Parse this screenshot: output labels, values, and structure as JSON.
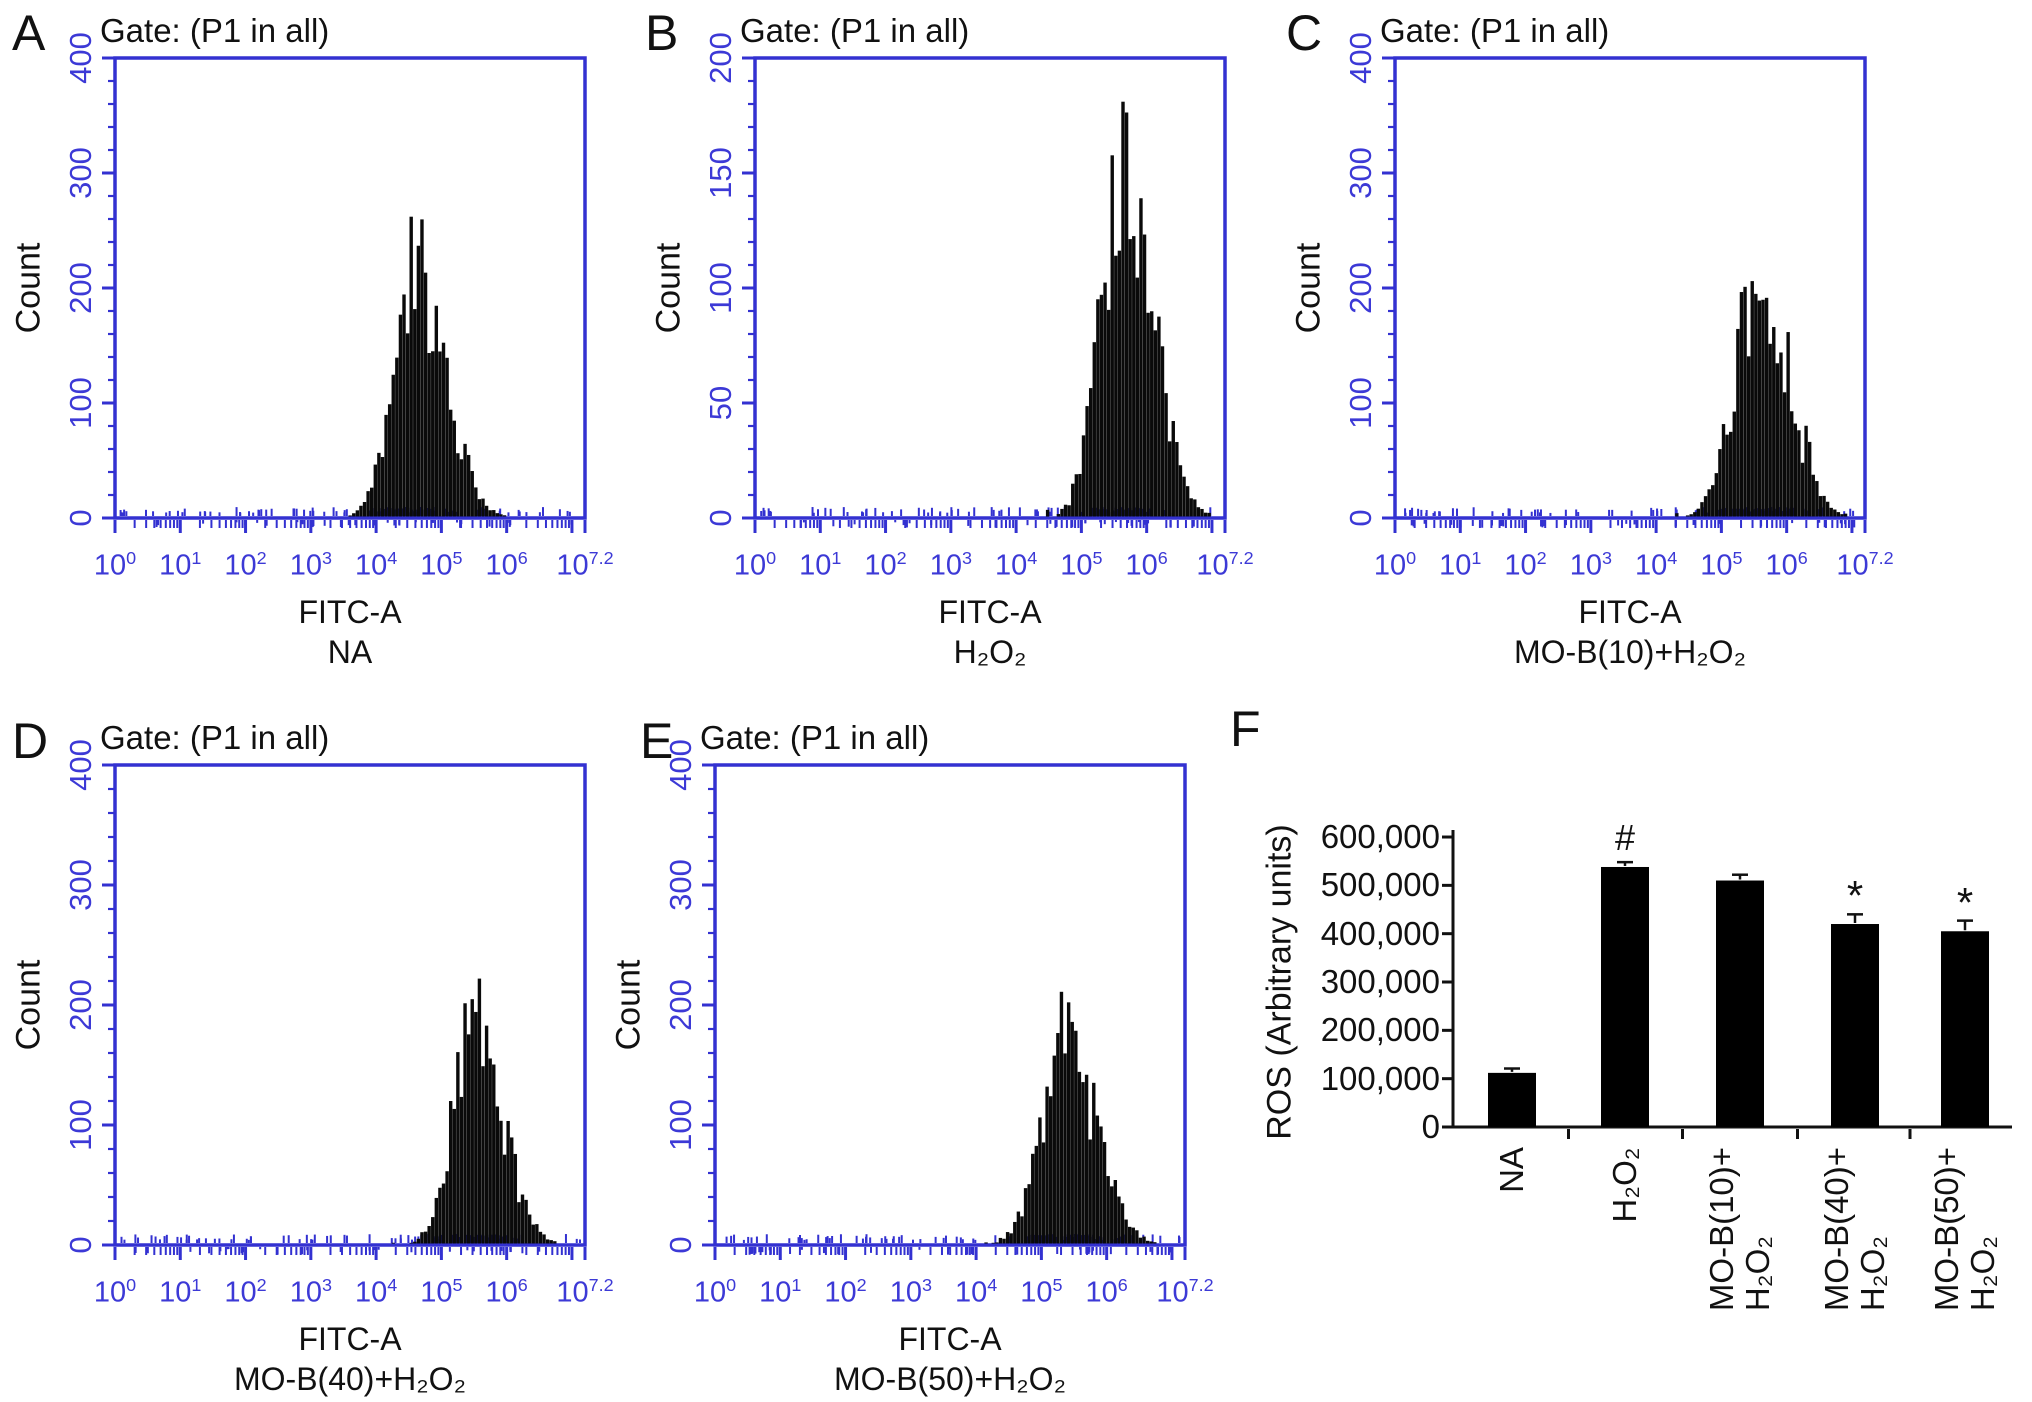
{
  "colors": {
    "axis_blue_line": "#3331d1",
    "axis_blue_text": "#3c39d6",
    "histogram_fill": "#0a0a0a",
    "bar_fill": "#000000",
    "ink": "#111111"
  },
  "x_tick_base": "10",
  "histogram_x_exponents": [
    "0",
    "1",
    "2",
    "3",
    "4",
    "5",
    "6",
    "7.2"
  ],
  "chart_data": [
    {
      "type": "histogram",
      "panel": "A",
      "title": "Gate: (P1 in all)",
      "ylabel": "Count",
      "xlabel": "FITC-A",
      "condition": "NA",
      "x_scale": "log10, decades 0 to 7.2",
      "y_ticks": [
        0,
        100,
        200,
        300,
        400
      ],
      "ylim": [
        0,
        400
      ],
      "peak_log10": 4.62,
      "peak_count": 262,
      "sigma_log10": 0.4,
      "spread_log10": [
        3.6,
        6.1
      ],
      "seed": 11
    },
    {
      "type": "histogram",
      "panel": "B",
      "title": "Gate: (P1 in all)",
      "ylabel": "Count",
      "xlabel": "FITC-A",
      "condition": "H₂O₂",
      "x_scale": "log10, decades 0 to 7.2",
      "y_ticks": [
        0,
        50,
        100,
        150,
        200
      ],
      "ylim": [
        0,
        200
      ],
      "peak_log10": 5.65,
      "peak_count": 181,
      "sigma_log10": 0.4,
      "spread_log10": [
        4.4,
        6.8
      ],
      "seed": 23
    },
    {
      "type": "histogram",
      "panel": "C",
      "title": "Gate: (P1 in all)",
      "ylabel": "Count",
      "xlabel": "FITC-A",
      "condition": "MO-B(10)+H₂O₂",
      "x_scale": "log10, decades 0 to 7.2",
      "y_ticks": [
        0,
        100,
        200,
        300,
        400
      ],
      "ylim": [
        0,
        400
      ],
      "peak_log10": 5.55,
      "peak_count": 206,
      "sigma_log10": 0.42,
      "spread_log10": [
        4.0,
        6.7
      ],
      "seed": 37
    },
    {
      "type": "histogram",
      "panel": "D",
      "title": "Gate: (P1 in all)",
      "ylabel": "Count",
      "xlabel": "FITC-A",
      "condition": "MO-B(40)+H₂O₂",
      "x_scale": "log10, decades 0 to 7.2",
      "y_ticks": [
        0,
        100,
        200,
        300,
        400
      ],
      "ylim": [
        0,
        400
      ],
      "peak_log10": 5.5,
      "peak_count": 222,
      "sigma_log10": 0.38,
      "spread_log10": [
        4.2,
        6.5
      ],
      "seed": 41
    },
    {
      "type": "histogram",
      "panel": "E",
      "title": "Gate: (P1 in all)",
      "ylabel": "Count",
      "xlabel": "FITC-A",
      "condition": "MO-B(50)+H₂O₂",
      "x_scale": "log10, decades 0 to 7.2",
      "y_ticks": [
        0,
        100,
        200,
        300,
        400
      ],
      "ylim": [
        0,
        400
      ],
      "peak_log10": 5.35,
      "peak_count": 211,
      "sigma_log10": 0.42,
      "spread_log10": [
        3.9,
        6.5
      ],
      "seed": 53
    },
    {
      "type": "bar",
      "panel": "F",
      "ylabel": "ROS (Arbitrary units)",
      "categories": [
        [
          "NA"
        ],
        [
          "H₂O₂"
        ],
        [
          "MO-B(10)+",
          "H₂O₂"
        ],
        [
          "MO-B(40)+",
          "H₂O₂"
        ],
        [
          "MO-B(50)+",
          "H₂O₂"
        ]
      ],
      "values": [
        112000,
        538000,
        510000,
        420000,
        405000
      ],
      "errors": [
        9000,
        10000,
        12000,
        20000,
        22000
      ],
      "annotations": [
        "",
        "#",
        "",
        "*",
        "*"
      ],
      "y_tick_values": [
        0,
        100000,
        200000,
        300000,
        400000,
        500000,
        600000
      ],
      "y_tick_labels": [
        "0",
        "100,000",
        "200,000",
        "300,000",
        "400,000",
        "500,000",
        "600,000"
      ],
      "ylim": [
        0,
        600000
      ],
      "legend": "none",
      "grid": "off"
    }
  ]
}
